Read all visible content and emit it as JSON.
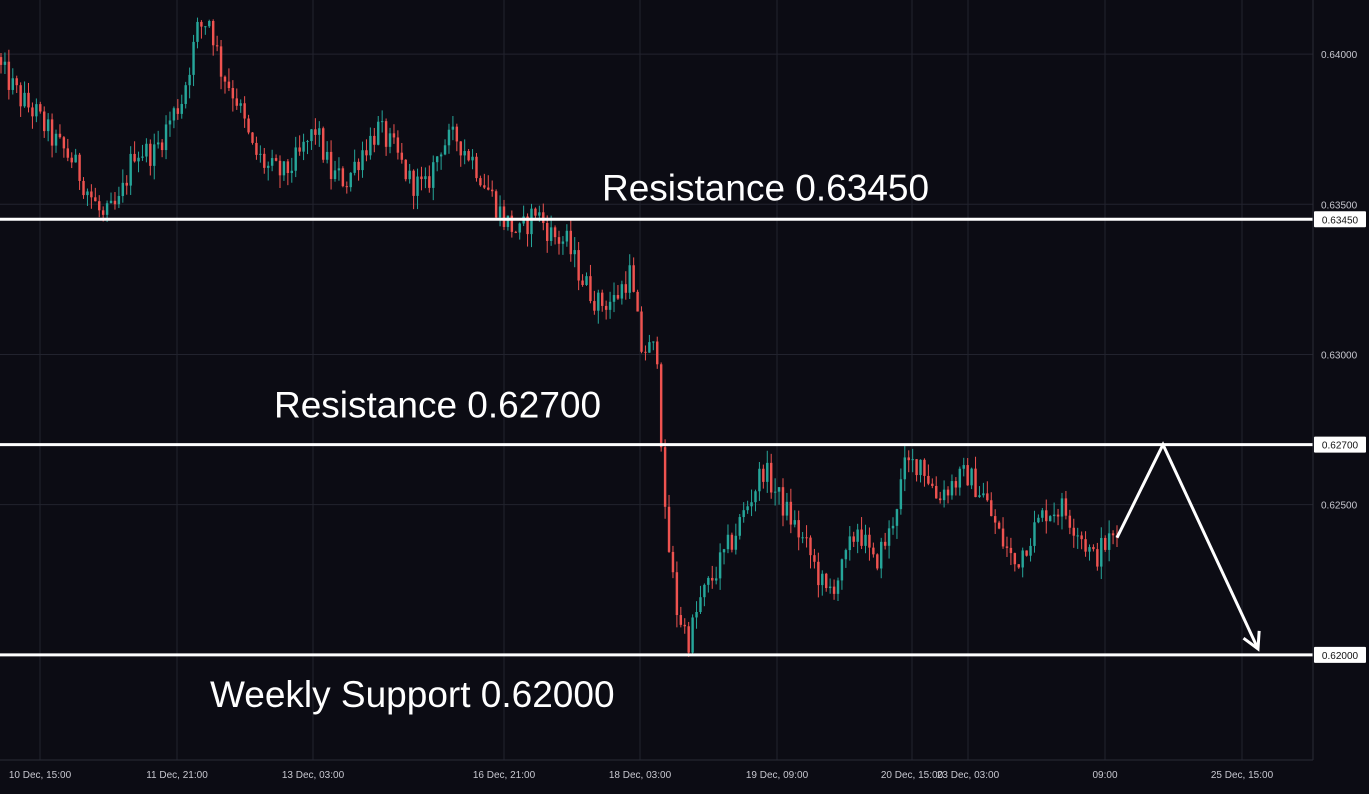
{
  "chart_data": {
    "type": "candlestick",
    "title": "",
    "xlabel": "",
    "ylabel": "",
    "ylim": [
      0.6165,
      0.6418
    ],
    "grid": true,
    "y_ticks": [
      "0.64000",
      "0.63500",
      "0.63000",
      "0.62500"
    ],
    "x_ticks": [
      "10 Dec, 15:00",
      "11 Dec, 21:00",
      "13 Dec, 03:00",
      "16 Dec, 21:00",
      "18 Dec, 03:00",
      "19 Dec, 09:00",
      "20 Dec, 15:00",
      "23 Dec, 03:00",
      "09:00",
      "25 Dec, 15:00"
    ],
    "colors": {
      "up": "#26a69a",
      "down": "#ef5350",
      "level": "#ffffff",
      "grid": "#22232e",
      "background": "#0c0c14"
    },
    "levels": [
      {
        "label": "Resistance 0.63450",
        "value": 0.6345,
        "badge": "0.63450"
      },
      {
        "label": "Resistance 0.62700",
        "value": 0.627,
        "badge": "0.62700"
      },
      {
        "label": "Weekly Support 0.62000",
        "value": 0.62,
        "badge": "0.62000"
      }
    ],
    "projection": {
      "from": 0.6239,
      "peak": 0.627,
      "target": 0.62
    },
    "close_path": [
      [
        0,
        0.6395
      ],
      [
        5,
        0.6385
      ],
      [
        9,
        0.638
      ],
      [
        13,
        0.6372
      ],
      [
        18,
        0.6365
      ],
      [
        22,
        0.6355
      ],
      [
        26,
        0.6345
      ],
      [
        30,
        0.635
      ],
      [
        34,
        0.6368
      ],
      [
        39,
        0.6367
      ],
      [
        43,
        0.6378
      ],
      [
        46,
        0.6385
      ],
      [
        50,
        0.6408
      ],
      [
        53,
        0.6412
      ],
      [
        56,
        0.6395
      ],
      [
        60,
        0.6385
      ],
      [
        64,
        0.6368
      ],
      [
        68,
        0.6362
      ],
      [
        72,
        0.636
      ],
      [
        76,
        0.6366
      ],
      [
        80,
        0.6375
      ],
      [
        84,
        0.636
      ],
      [
        88,
        0.6358
      ],
      [
        92,
        0.6368
      ],
      [
        96,
        0.6375
      ],
      [
        100,
        0.6368
      ],
      [
        104,
        0.6358
      ],
      [
        108,
        0.6355
      ],
      [
        112,
        0.637
      ],
      [
        116,
        0.6372
      ],
      [
        120,
        0.6365
      ],
      [
        124,
        0.6355
      ],
      [
        128,
        0.6345
      ],
      [
        132,
        0.634
      ],
      [
        136,
        0.6348
      ],
      [
        140,
        0.634
      ],
      [
        144,
        0.6337
      ],
      [
        148,
        0.6325
      ],
      [
        152,
        0.6317
      ],
      [
        156,
        0.6318
      ],
      [
        160,
        0.6327
      ],
      [
        163,
        0.6302
      ],
      [
        167,
        0.6301
      ],
      [
        169,
        0.6245
      ],
      [
        172,
        0.6215
      ],
      [
        175,
        0.6205
      ],
      [
        178,
        0.6218
      ],
      [
        182,
        0.6228
      ],
      [
        186,
        0.6238
      ],
      [
        190,
        0.625
      ],
      [
        194,
        0.6262
      ],
      [
        198,
        0.6252
      ],
      [
        202,
        0.6243
      ],
      [
        206,
        0.6233
      ],
      [
        210,
        0.622
      ],
      [
        214,
        0.6228
      ],
      [
        218,
        0.6243
      ],
      [
        222,
        0.623
      ],
      [
        226,
        0.624
      ],
      [
        230,
        0.6262
      ],
      [
        234,
        0.6265
      ],
      [
        238,
        0.6253
      ],
      [
        242,
        0.6257
      ],
      [
        246,
        0.626
      ],
      [
        250,
        0.6253
      ],
      [
        254,
        0.624
      ],
      [
        258,
        0.623
      ],
      [
        262,
        0.624
      ],
      [
        266,
        0.6248
      ],
      [
        270,
        0.6249
      ],
      [
        274,
        0.6242
      ],
      [
        278,
        0.6232
      ],
      [
        282,
        0.6238
      ],
      [
        284,
        0.6239
      ]
    ]
  }
}
